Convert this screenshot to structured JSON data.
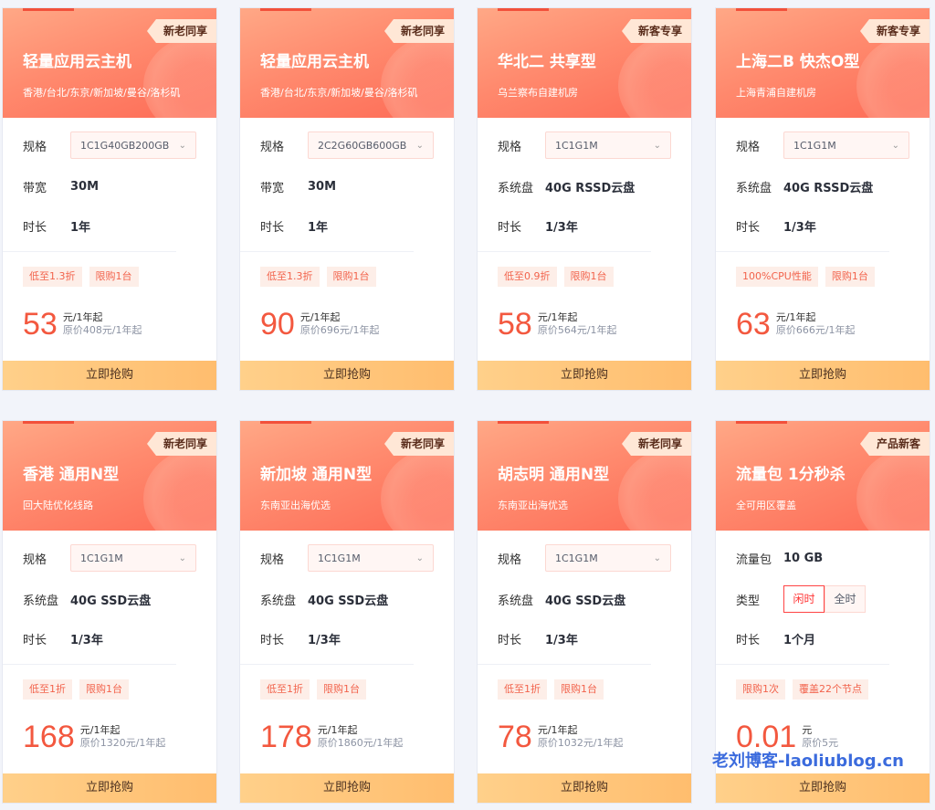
{
  "button_label": "立即抢购",
  "watermark": "老刘博客-laoliublog.cn",
  "colors": {
    "accent": "#f3583f",
    "button": "#ffc57a",
    "header": "#fd7a60"
  },
  "cards": [
    {
      "badge": "新老同享",
      "title": "轻量应用云主机",
      "subtitle": "香港/台北/东京/新加坡/曼谷/洛杉矶",
      "rows": [
        {
          "label": "规格",
          "select": "1C1G40GB200GB"
        },
        {
          "label": "带宽",
          "value": "30M"
        },
        {
          "label": "时长",
          "value": "1年"
        }
      ],
      "tags": [
        "低至1.3折",
        "限购1台"
      ],
      "price": "53",
      "unit": "元/1年起",
      "original": "原价408元/1年起"
    },
    {
      "badge": "新老同享",
      "title": "轻量应用云主机",
      "subtitle": "香港/台北/东京/新加坡/曼谷/洛杉矶",
      "rows": [
        {
          "label": "规格",
          "select": "2C2G60GB600GB"
        },
        {
          "label": "带宽",
          "value": "30M"
        },
        {
          "label": "时长",
          "value": "1年"
        }
      ],
      "tags": [
        "低至1.3折",
        "限购1台"
      ],
      "price": "90",
      "unit": "元/1年起",
      "original": "原价696元/1年起"
    },
    {
      "badge": "新客专享",
      "title": "华北二 共享型",
      "subtitle": "乌兰察布自建机房",
      "rows": [
        {
          "label": "规格",
          "select": "1C1G1M"
        },
        {
          "label": "系统盘",
          "value": "40G RSSD云盘"
        },
        {
          "label": "时长",
          "value": "1/3年"
        }
      ],
      "tags": [
        "低至0.9折",
        "限购1台"
      ],
      "price": "58",
      "unit": "元/1年起",
      "original": "原价564元/1年起"
    },
    {
      "badge": "新客专享",
      "title": "上海二B 快杰O型",
      "subtitle": "上海青浦自建机房",
      "rows": [
        {
          "label": "规格",
          "select": "1C1G1M"
        },
        {
          "label": "系统盘",
          "value": "40G RSSD云盘"
        },
        {
          "label": "时长",
          "value": "1/3年"
        }
      ],
      "tags": [
        "100%CPU性能",
        "限购1台"
      ],
      "price": "63",
      "unit": "元/1年起",
      "original": "原价666元/1年起"
    },
    {
      "badge": "新老同享",
      "title": "香港 通用N型",
      "subtitle": "回大陆优化线路",
      "rows": [
        {
          "label": "规格",
          "select": "1C1G1M"
        },
        {
          "label": "系统盘",
          "value": "40G SSD云盘"
        },
        {
          "label": "时长",
          "value": "1/3年"
        }
      ],
      "tags": [
        "低至1折",
        "限购1台"
      ],
      "price": "168",
      "unit": "元/1年起",
      "original": "原价1320元/1年起"
    },
    {
      "badge": "新老同享",
      "title": "新加坡 通用N型",
      "subtitle": "东南亚出海优选",
      "rows": [
        {
          "label": "规格",
          "select": "1C1G1M"
        },
        {
          "label": "系统盘",
          "value": "40G SSD云盘"
        },
        {
          "label": "时长",
          "value": "1/3年"
        }
      ],
      "tags": [
        "低至1折",
        "限购1台"
      ],
      "price": "178",
      "unit": "元/1年起",
      "original": "原价1860元/1年起"
    },
    {
      "badge": "新老同享",
      "title": "胡志明 通用N型",
      "subtitle": "东南亚出海优选",
      "rows": [
        {
          "label": "规格",
          "select": "1C1G1M"
        },
        {
          "label": "系统盘",
          "value": "40G SSD云盘"
        },
        {
          "label": "时长",
          "value": "1/3年"
        }
      ],
      "tags": [
        "低至1折",
        "限购1台"
      ],
      "price": "78",
      "unit": "元/1年起",
      "original": "原价1032元/1年起"
    },
    {
      "badge": "产品新客",
      "title": "流量包 1分秒杀",
      "subtitle": "全可用区覆盖",
      "rows": [
        {
          "label": "流量包",
          "value": "10 GB"
        },
        {
          "label": "类型",
          "options": [
            "闲时",
            "全时"
          ],
          "selected": 0
        },
        {
          "label": "时长",
          "value": "1个月"
        }
      ],
      "tags": [
        "限购1次",
        "覆盖22个节点"
      ],
      "price": "0.01",
      "unit": "元",
      "original": "原价5元"
    }
  ]
}
